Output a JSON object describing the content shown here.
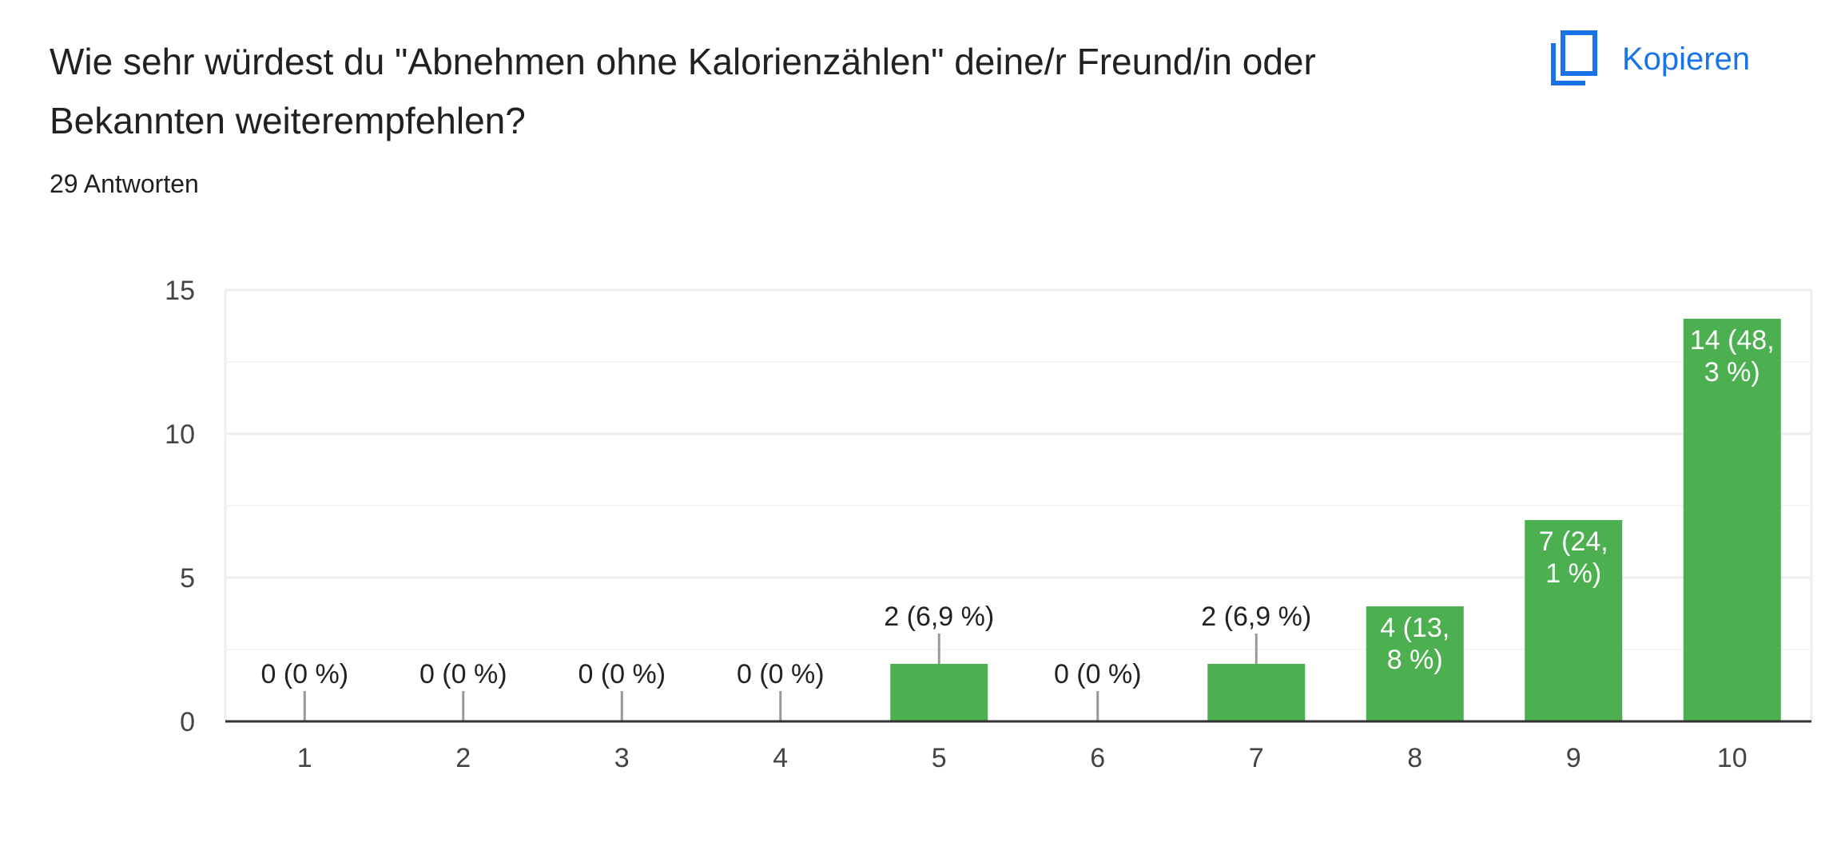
{
  "question": {
    "title": "Wie sehr würdest du \"Abnehmen ohne Kalorienzählen\" deine/r Freund/in oder Bekannten weiterempfehlen?",
    "response_count": "29 Antworten"
  },
  "copy_button": {
    "label": "Kopieren",
    "icon": "copy-icon"
  },
  "colors": {
    "bar": "#4caf50",
    "accent": "#1a73e8",
    "grid": "#eeeeee",
    "axis": "#333333"
  },
  "chart_data": {
    "type": "bar",
    "title": "",
    "xlabel": "",
    "ylabel": "",
    "categories": [
      "1",
      "2",
      "3",
      "4",
      "5",
      "6",
      "7",
      "8",
      "9",
      "10"
    ],
    "values": [
      0,
      0,
      0,
      0,
      2,
      0,
      2,
      4,
      7,
      14
    ],
    "data_labels": [
      [
        "0 (0 %)"
      ],
      [
        "0 (0 %)"
      ],
      [
        "0 (0 %)"
      ],
      [
        "0 (0 %)"
      ],
      [
        "2 (6,9 %)"
      ],
      [
        "0 (0 %)"
      ],
      [
        "2 (6,9 %)"
      ],
      [
        "4 (13,",
        "8 %)"
      ],
      [
        "7 (24,",
        "1 %)"
      ],
      [
        "14 (48,",
        "3 %)"
      ]
    ],
    "ylim": [
      0,
      15
    ],
    "yticks": [
      0,
      5,
      10,
      15
    ],
    "grid": true,
    "legend": "none"
  }
}
